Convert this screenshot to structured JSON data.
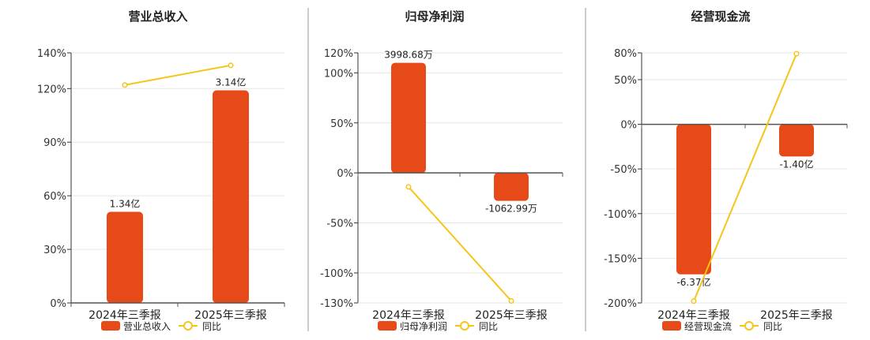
{
  "colors": {
    "bar": "#e64a19",
    "line": "#f5c518",
    "axis": "#333333",
    "grid": "#e6e6e6",
    "divider": "#999999"
  },
  "chart_data": [
    {
      "type": "bar",
      "title": "营业总收入",
      "categories": [
        "2024年三季报",
        "2025年三季报"
      ],
      "ylim": [
        0,
        140
      ],
      "yticks": [
        0,
        30,
        60,
        90,
        120,
        140
      ],
      "ytick_labels": [
        "0%",
        "30%",
        "60%",
        "90%",
        "120%",
        "140%"
      ],
      "series": [
        {
          "name": "营业总收入",
          "kind": "bar",
          "values": [
            51,
            119
          ],
          "labels": [
            "1.34亿",
            "3.14亿"
          ]
        },
        {
          "name": "同比",
          "kind": "line",
          "values": [
            122,
            133
          ]
        }
      ],
      "legend": "bottom",
      "grid": true
    },
    {
      "type": "bar",
      "title": "归母净利润",
      "categories": [
        "2024年三季报",
        "2025年三季报"
      ],
      "ylim": [
        -130,
        120
      ],
      "yticks": [
        -130,
        -100,
        -50,
        0,
        50,
        100,
        120
      ],
      "ytick_labels": [
        "-130%",
        "-100%",
        "-50%",
        "0%",
        "50%",
        "100%",
        "120%"
      ],
      "series": [
        {
          "name": "归母净利润",
          "kind": "bar",
          "values": [
            110,
            -28
          ],
          "labels": [
            "3998.68万",
            "-1062.99万"
          ]
        },
        {
          "name": "同比",
          "kind": "line",
          "values": [
            -14,
            -128
          ]
        }
      ],
      "legend": "bottom",
      "grid": true
    },
    {
      "type": "bar",
      "title": "经营现金流",
      "categories": [
        "2024年三季报",
        "2025年三季报"
      ],
      "ylim": [
        -200,
        80
      ],
      "yticks": [
        -200,
        -150,
        -100,
        -50,
        0,
        50,
        80
      ],
      "ytick_labels": [
        "-200%",
        "-150%",
        "-100%",
        "-50%",
        "0%",
        "50%",
        "80%"
      ],
      "series": [
        {
          "name": "经营现金流",
          "kind": "bar",
          "values": [
            -168,
            -36
          ],
          "labels": [
            "-6.37亿",
            "-1.40亿"
          ]
        },
        {
          "name": "同比",
          "kind": "line",
          "values": [
            -198,
            79
          ]
        }
      ],
      "legend": "bottom",
      "grid": true
    }
  ]
}
